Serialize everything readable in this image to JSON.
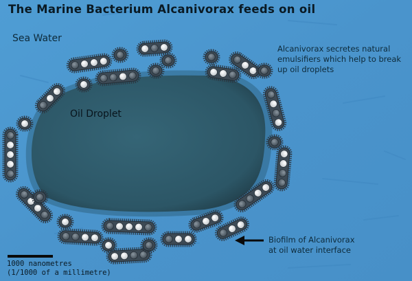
{
  "title": "The Marine Bacterium Alcanivorax feeds on oil",
  "labels": {
    "sea_water": "Sea Water",
    "oil_droplet": "Oil Droplet",
    "emulsifiers": "Alcanivorax secretes natural emulsifiers which help to break up oil droplets",
    "biofilm_line1": "Biofilm of Alcanivorax",
    "biofilm_line2": "at oil water interface",
    "scale_line1": "1000 nanometres",
    "scale_line2": "(1/1000 of a millimetre)"
  },
  "colors": {
    "sea": "#4a97cf",
    "sea_dark": "#3a82bb",
    "oil": "#2f5c6e",
    "oil_dark": "#234856",
    "bacterium_body": "#3d4a55",
    "granule_light": "#e6e6e6",
    "granule_dark": "#5a6670",
    "arrow": "#0a0a0a"
  }
}
